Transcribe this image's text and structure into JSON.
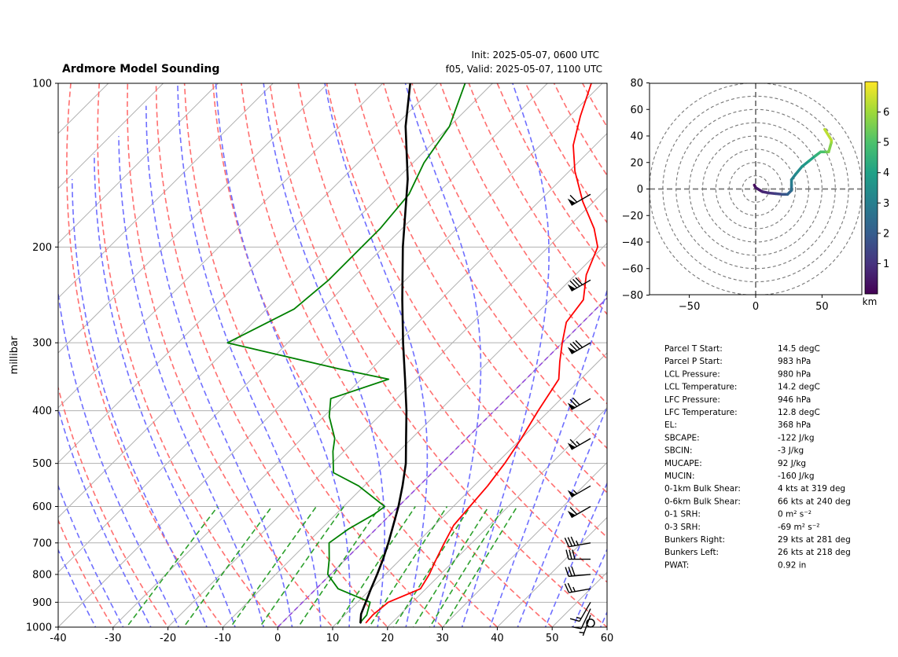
{
  "title": "Ardmore Model Sounding",
  "init": "Init: 2025-05-07, 0600 UTC",
  "valid": "f05, Valid: 2025-05-07, 1100 UTC",
  "colors": {
    "temperature": "#ff0000",
    "dewpoint": "#008000",
    "parcel": "#000000",
    "dry_adiabat": "#ff6f6f",
    "moist_adiabat": "#6f6fff",
    "mixing_ratio": "#2ca02c",
    "freezing_isotherm": "#8a2be2",
    "isotherm": "#b0b0b0",
    "isobar": "#b0b0b0"
  },
  "chart_data": [
    {
      "type": "line",
      "subtype": "skew-t log-p",
      "ylabel": "millibar",
      "xlabel": "",
      "xlim": [
        -40,
        60
      ],
      "ylim": [
        1000,
        100
      ],
      "y_scale": "log",
      "x_ticks": [
        "-40",
        "-30",
        "-20",
        "-10",
        "0",
        "10",
        "20",
        "30",
        "40",
        "50",
        "60"
      ],
      "y_ticks": [
        "100",
        "200",
        "300",
        "400",
        "500",
        "600",
        "700",
        "800",
        "900",
        "1000"
      ],
      "grid": true,
      "series": [
        {
          "key": "temperature",
          "points": [
            [
              15.3,
              983
            ],
            [
              15.1,
              950
            ],
            [
              15.6,
              900
            ],
            [
              19.0,
              850
            ],
            [
              18.0,
              800
            ],
            [
              16.5,
              750
            ],
            [
              15.0,
              700
            ],
            [
              13.5,
              650
            ],
            [
              13.0,
              600
            ],
            [
              12.5,
              550
            ],
            [
              11.5,
              500
            ],
            [
              10.0,
              450
            ],
            [
              8.0,
              400
            ],
            [
              6.0,
              350
            ],
            [
              3.0,
              325
            ],
            [
              0.0,
              300
            ],
            [
              -3.0,
              275
            ],
            [
              -4.0,
              250
            ],
            [
              -8.0,
              225
            ],
            [
              -11.0,
              200
            ],
            [
              -15.0,
              185
            ],
            [
              -22.0,
              165
            ],
            [
              -29.0,
              145
            ],
            [
              -34.0,
              130
            ],
            [
              -38.0,
              115
            ],
            [
              -42.0,
              100
            ]
          ]
        },
        {
          "key": "dewpoint",
          "points": [
            [
              14.2,
              983
            ],
            [
              14.0,
              950
            ],
            [
              12.3,
              900
            ],
            [
              4.0,
              850
            ],
            [
              -0.5,
              800
            ],
            [
              -3.0,
              750
            ],
            [
              -6.0,
              700
            ],
            [
              -5.0,
              660
            ],
            [
              -3.0,
              620
            ],
            [
              -2.5,
              600
            ],
            [
              -11.0,
              550
            ],
            [
              -18.0,
              520
            ],
            [
              -22.0,
              475
            ],
            [
              -24.0,
              450
            ],
            [
              -29.0,
              410
            ],
            [
              -32.0,
              380
            ],
            [
              -25.0,
              350
            ],
            [
              -36.0,
              335
            ],
            [
              -61.0,
              300
            ],
            [
              -55.0,
              260
            ],
            [
              -54.0,
              230
            ],
            [
              -54.0,
              205
            ],
            [
              -54.0,
              185
            ],
            [
              -55.0,
              160
            ],
            [
              -58.0,
              140
            ],
            [
              -60.0,
              120
            ],
            [
              -65.0,
              100
            ]
          ]
        },
        {
          "key": "parcel",
          "points": [
            [
              14.5,
              983
            ],
            [
              14.2,
              980
            ],
            [
              12.8,
              946
            ],
            [
              11.5,
              900
            ],
            [
              10.0,
              850
            ],
            [
              8.5,
              800
            ],
            [
              6.8,
              750
            ],
            [
              4.8,
              700
            ],
            [
              2.5,
              650
            ],
            [
              0.0,
              600
            ],
            [
              -3.0,
              550
            ],
            [
              -6.5,
              500
            ],
            [
              -11.0,
              450
            ],
            [
              -16.0,
              400
            ],
            [
              -22.0,
              350
            ],
            [
              -29.0,
              300
            ],
            [
              -37.0,
              250
            ],
            [
              -46.5,
              200
            ],
            [
              -58.0,
              150
            ],
            [
              -68.0,
              120
            ],
            [
              -75.0,
              100
            ]
          ]
        }
      ],
      "wind_barbs": [
        {
          "pressure": 983,
          "speed_kt": 2,
          "direction_deg": 0
        },
        {
          "pressure": 950,
          "speed_kt": 5,
          "direction_deg": 200
        },
        {
          "pressure": 925,
          "speed_kt": 10,
          "direction_deg": 205
        },
        {
          "pressure": 900,
          "speed_kt": 15,
          "direction_deg": 210
        },
        {
          "pressure": 850,
          "speed_kt": 25,
          "direction_deg": 260
        },
        {
          "pressure": 800,
          "speed_kt": 30,
          "direction_deg": 265
        },
        {
          "pressure": 750,
          "speed_kt": 30,
          "direction_deg": 270
        },
        {
          "pressure": 700,
          "speed_kt": 35,
          "direction_deg": 260
        },
        {
          "pressure": 600,
          "speed_kt": 60,
          "direction_deg": 240
        },
        {
          "pressure": 550,
          "speed_kt": 55,
          "direction_deg": 240
        },
        {
          "pressure": 450,
          "speed_kt": 65,
          "direction_deg": 240
        },
        {
          "pressure": 380,
          "speed_kt": 70,
          "direction_deg": 240
        },
        {
          "pressure": 300,
          "speed_kt": 80,
          "direction_deg": 240
        },
        {
          "pressure": 230,
          "speed_kt": 80,
          "direction_deg": 240
        },
        {
          "pressure": 160,
          "speed_kt": 60,
          "direction_deg": 240
        }
      ]
    },
    {
      "type": "line",
      "subtype": "hodograph",
      "xlim": [
        -80,
        80
      ],
      "ylim": [
        -80,
        80
      ],
      "x_ticks": [
        "−50",
        "0",
        "50"
      ],
      "y_ticks": [
        "80",
        "60",
        "40",
        "20",
        "0",
        "−20",
        "−40",
        "−60",
        "−80"
      ],
      "rings": [
        10,
        20,
        30,
        40,
        50,
        60,
        70,
        80
      ],
      "colorbar_label": "km",
      "colorbar_ticks": [
        "1",
        "2",
        "3",
        "4",
        "5",
        "6"
      ],
      "colorbar_range": [
        0,
        7
      ],
      "points": [
        [
          -1,
          3,
          0.0
        ],
        [
          0,
          1,
          0.3
        ],
        [
          5,
          -2,
          0.6
        ],
        [
          10,
          -3,
          0.9
        ],
        [
          15,
          -3.5,
          1.2
        ],
        [
          20,
          -4,
          1.6
        ],
        [
          24,
          -4,
          2.0
        ],
        [
          27,
          -1,
          2.4
        ],
        [
          27,
          3,
          2.8
        ],
        [
          27,
          7,
          3.0
        ],
        [
          30,
          11,
          3.2
        ],
        [
          35,
          17,
          3.5
        ],
        [
          40,
          21,
          3.9
        ],
        [
          45,
          25,
          4.3
        ],
        [
          49,
          28,
          4.8
        ],
        [
          53,
          28,
          5.2
        ],
        [
          55,
          28,
          5.5
        ],
        [
          57,
          35,
          5.8
        ],
        [
          57,
          37,
          6.1
        ],
        [
          52,
          45,
          6.5
        ]
      ]
    }
  ],
  "parameters": [
    {
      "label": "Parcel T Start:",
      "value": "14.5 degC"
    },
    {
      "label": "Parcel P Start:",
      "value": "983 hPa"
    },
    {
      "label": "LCL Pressure:",
      "value": "980 hPa"
    },
    {
      "label": "LCL Temperature:",
      "value": "14.2 degC"
    },
    {
      "label": "LFC Pressure:",
      "value": "946 hPa"
    },
    {
      "label": "LFC Temperature:",
      "value": "12.8 degC"
    },
    {
      "label": "EL:",
      "value": "368 hPa"
    },
    {
      "label": "SBCAPE:",
      "value": "-122 J/kg"
    },
    {
      "label": "SBCIN:",
      "value": "-3 J/kg"
    },
    {
      "label": "MUCAPE:",
      "value": "92 J/kg"
    },
    {
      "label": "MUCIN:",
      "value": "-160 J/kg"
    },
    {
      "label": "0-1km Bulk Shear:",
      "value": "4 kts at 319 deg"
    },
    {
      "label": "0-6km Bulk Shear:",
      "value": "66 kts at 240 deg"
    },
    {
      "label": "0-1 SRH:",
      "value": "0 m² s⁻²"
    },
    {
      "label": "0-3 SRH:",
      "value": "-69 m² s⁻²"
    },
    {
      "label": "Bunkers Right:",
      "value": "29 kts at 281 deg"
    },
    {
      "label": "Bunkers Left:",
      "value": "26 kts at 218 deg"
    },
    {
      "label": "PWAT:",
      "value": "0.92 in"
    }
  ]
}
